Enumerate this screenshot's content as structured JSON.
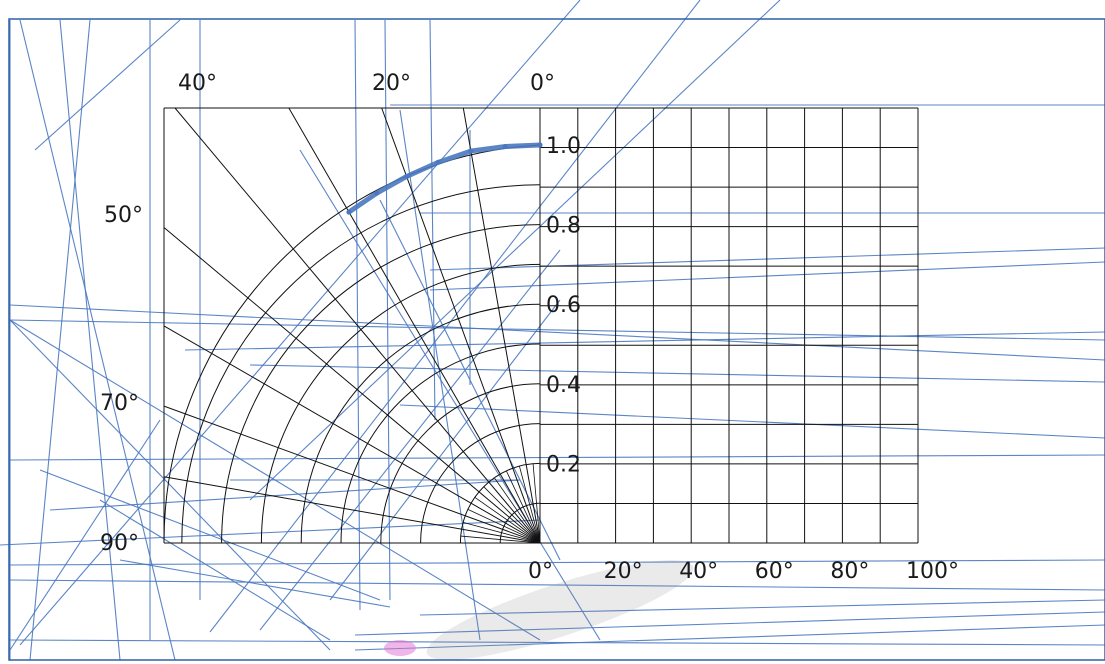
{
  "colors": {
    "grid": "#111111",
    "trace": "#4a78c0",
    "frame": "#2f5fa8",
    "stroke_line": "#4a78c0"
  },
  "chart_data": {
    "type": "polar-diagram",
    "polar": {
      "radial_ticks": [
        "1.0",
        "0.8",
        "0.6",
        "0.4",
        "0.2"
      ],
      "radial_values": [
        1.0,
        0.8,
        0.6,
        0.4,
        0.2
      ],
      "angle_labels": [
        "0°",
        "20°",
        "40°",
        "50°",
        "70°",
        "90°"
      ],
      "angle_values": [
        0,
        20,
        40,
        50,
        70,
        90
      ],
      "rlim": [
        0,
        1.0
      ]
    },
    "cartesian": {
      "x_ticks": [
        "0°",
        "20°",
        "40°",
        "60°",
        "80°",
        "100°"
      ],
      "x_values": [
        0,
        20,
        40,
        60,
        80,
        100
      ],
      "xlim": [
        0,
        100
      ],
      "ylim": [
        0,
        1.1
      ],
      "grid": true
    },
    "series": [
      {
        "values": [
          {
            "angle": 0,
            "r": 1.0
          },
          {
            "angle": 5,
            "r": 1.0
          },
          {
            "angle": 10,
            "r": 1.0
          },
          {
            "angle": 15,
            "r": 0.99
          },
          {
            "angle": 20,
            "r": 0.98
          },
          {
            "angle": 25,
            "r": 0.97
          },
          {
            "angle": 30,
            "r": 0.96
          }
        ]
      }
    ]
  }
}
